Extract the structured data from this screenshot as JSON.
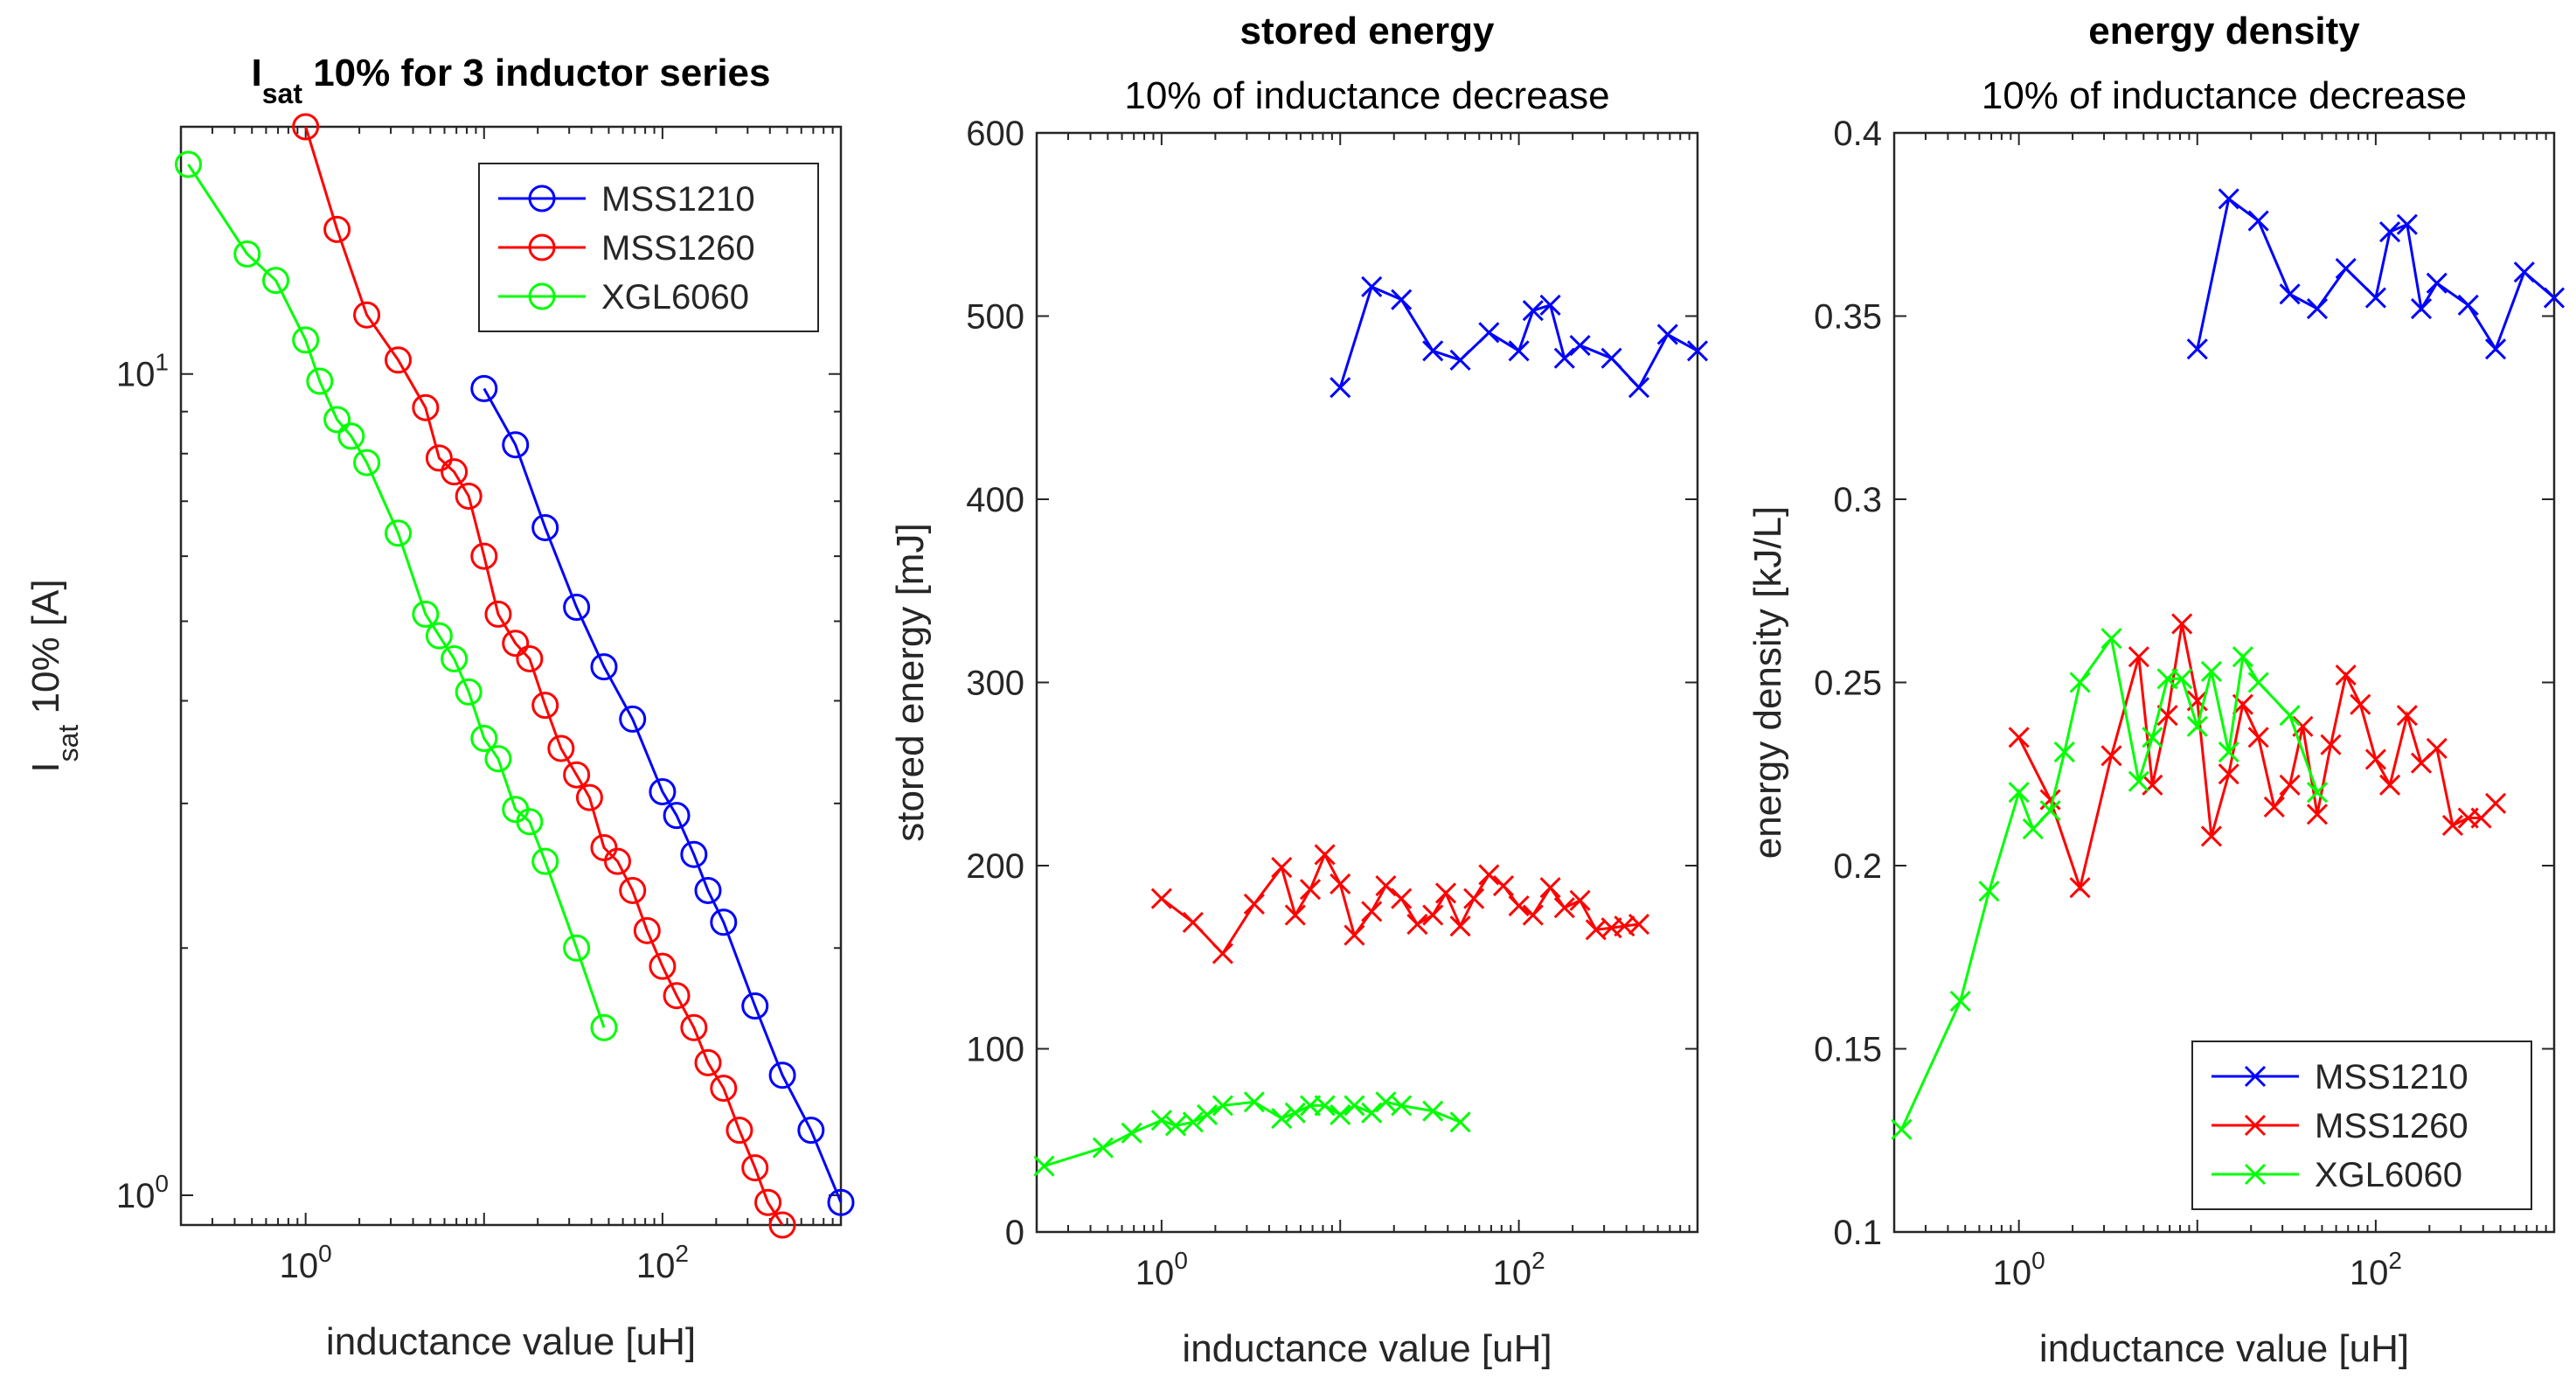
{
  "chart_data": [
    {
      "type": "line",
      "title_main": "I",
      "title_sub": "sat",
      "title_rest": " 10% for 3 inductor series",
      "xlabel": "inductance value [uH]",
      "ylabel_main": "I",
      "ylabel_sub": "sat",
      "ylabel_rest": " 10% [A]",
      "xscale": "log",
      "yscale": "log",
      "xlim": [
        0.2,
        1000
      ],
      "ylim": [
        0.92,
        20
      ],
      "xticks": [
        1,
        100
      ],
      "xtick_labels": [
        "10^0",
        "10^2"
      ],
      "yticks": [
        1,
        10
      ],
      "ytick_labels": [
        "10^0",
        "10^1"
      ],
      "marker": "circle",
      "legend_position": "top-right",
      "series": [
        {
          "name": "MSS1210",
          "color": "#0000ff",
          "x": [
            10,
            15,
            22,
            33,
            47,
            68,
            100,
            120,
            150,
            180,
            220,
            330,
            470,
            680,
            1000
          ],
          "y": [
            9.6,
            8.2,
            6.5,
            5.2,
            4.4,
            3.8,
            3.1,
            2.9,
            2.6,
            2.35,
            2.15,
            1.7,
            1.4,
            1.2,
            0.98
          ]
        },
        {
          "name": "MSS1260",
          "color": "#ff0000",
          "x": [
            1,
            1.5,
            2.2,
            3.3,
            4.7,
            5.6,
            6.8,
            8.2,
            10,
            12,
            15,
            18,
            22,
            27,
            33,
            39,
            47,
            56,
            68,
            82,
            100,
            120,
            150,
            180,
            220,
            270,
            330,
            390,
            470
          ],
          "y": [
            20,
            15,
            11.8,
            10.4,
            9.1,
            7.9,
            7.6,
            7.1,
            6.0,
            5.1,
            4.7,
            4.5,
            3.95,
            3.5,
            3.25,
            3.05,
            2.65,
            2.55,
            2.35,
            2.1,
            1.9,
            1.75,
            1.6,
            1.45,
            1.35,
            1.2,
            1.08,
            0.98,
            0.92
          ]
        },
        {
          "name": "XGL6060",
          "color": "#00ff00",
          "x": [
            0.22,
            0.47,
            0.68,
            1.0,
            1.2,
            1.5,
            1.8,
            2.2,
            3.3,
            4.7,
            5.6,
            6.8,
            8.2,
            10,
            12,
            15,
            18,
            22,
            33,
            47
          ],
          "y": [
            18,
            14,
            13,
            11,
            9.8,
            8.8,
            8.4,
            7.8,
            6.4,
            5.1,
            4.8,
            4.5,
            4.1,
            3.6,
            3.4,
            2.95,
            2.85,
            2.55,
            2.0,
            1.6
          ]
        }
      ]
    },
    {
      "type": "line",
      "title": "stored energy",
      "subtitle": "10% of inductance decrease",
      "xlabel": "inductance value [uH]",
      "ylabel": "stored energy [mJ]",
      "xscale": "log",
      "yscale": "linear",
      "xlim": [
        0.2,
        1000
      ],
      "ylim": [
        0,
        600
      ],
      "xticks": [
        1,
        100
      ],
      "xtick_labels": [
        "10^0",
        "10^2"
      ],
      "yticks": [
        0,
        100,
        200,
        300,
        400,
        500,
        600
      ],
      "ytick_labels": [
        "0",
        "100",
        "200",
        "300",
        "400",
        "500",
        "600"
      ],
      "marker": "x",
      "series": [
        {
          "color": "#0000ff",
          "x": [
            10,
            15,
            22,
            33,
            47,
            68,
            100,
            120,
            150,
            180,
            220,
            330,
            470,
            680,
            1000
          ],
          "y": [
            461,
            516,
            509,
            481,
            476,
            491,
            481,
            503,
            506,
            477,
            484,
            477,
            461,
            490,
            481
          ]
        },
        {
          "color": "#ff0000",
          "x": [
            1,
            1.5,
            2.2,
            3.3,
            4.7,
            5.6,
            6.8,
            8.2,
            10,
            12,
            15,
            18,
            22,
            27,
            33,
            39,
            47,
            56,
            68,
            82,
            100,
            120,
            150,
            180,
            220,
            270,
            330,
            390,
            470
          ],
          "y": [
            182,
            169,
            152,
            179,
            199,
            173,
            187,
            206,
            190,
            162,
            175,
            189,
            182,
            168,
            173,
            185,
            167,
            182,
            195,
            189,
            178,
            173,
            188,
            177,
            181,
            165,
            166,
            167,
            168
          ]
        },
        {
          "color": "#00ff00",
          "x": [
            0.22,
            0.47,
            0.68,
            1.0,
            1.2,
            1.5,
            1.8,
            2.2,
            3.3,
            4.7,
            5.6,
            6.8,
            8.2,
            10,
            12,
            15,
            18,
            22,
            33,
            47
          ],
          "y": [
            36,
            46,
            54,
            61,
            58,
            60,
            64,
            69,
            71,
            62,
            65,
            69,
            69,
            64,
            69,
            65,
            71,
            69,
            66,
            60
          ]
        }
      ]
    },
    {
      "type": "line",
      "title": "energy density",
      "subtitle": "10% of inductance decrease",
      "xlabel": "inductance value [uH]",
      "ylabel": "energy density [kJ/L]",
      "xscale": "log",
      "yscale": "linear",
      "xlim": [
        0.2,
        1000
      ],
      "ylim": [
        0.1,
        0.4
      ],
      "xticks": [
        1,
        100
      ],
      "xtick_labels": [
        "10^0",
        "10^2"
      ],
      "yticks": [
        0.1,
        0.15,
        0.2,
        0.25,
        0.3,
        0.35,
        0.4
      ],
      "ytick_labels": [
        "0.1",
        "0.15",
        "0.2",
        "0.25",
        "0.3",
        "0.35",
        "0.4"
      ],
      "marker": "x",
      "legend_position": "bottom-right",
      "series": [
        {
          "name": "MSS1210",
          "color": "#0000ff",
          "x": [
            10,
            15,
            22,
            33,
            47,
            68,
            100,
            120,
            150,
            180,
            220,
            330,
            470,
            680,
            1000
          ],
          "y": [
            0.341,
            0.382,
            0.376,
            0.356,
            0.352,
            0.363,
            0.355,
            0.373,
            0.375,
            0.352,
            0.359,
            0.353,
            0.341,
            0.362,
            0.355
          ]
        },
        {
          "name": "MSS1260",
          "color": "#ff0000",
          "x": [
            1,
            1.5,
            2.2,
            3.3,
            4.7,
            5.6,
            6.8,
            8.2,
            10,
            12,
            15,
            18,
            22,
            27,
            33,
            39,
            47,
            56,
            68,
            82,
            100,
            120,
            150,
            180,
            220,
            270,
            330,
            390,
            470
          ],
          "y": [
            0.235,
            0.218,
            0.194,
            0.23,
            0.257,
            0.222,
            0.241,
            0.266,
            0.245,
            0.208,
            0.225,
            0.244,
            0.235,
            0.216,
            0.222,
            0.238,
            0.214,
            0.233,
            0.252,
            0.244,
            0.229,
            0.222,
            0.241,
            0.228,
            0.232,
            0.211,
            0.213,
            0.213,
            0.217
          ]
        },
        {
          "name": "XGL6060",
          "color": "#00ff00",
          "x": [
            0.22,
            0.47,
            0.68,
            1.0,
            1.2,
            1.5,
            1.8,
            2.2,
            3.3,
            4.7,
            5.6,
            6.8,
            8.2,
            10,
            12,
            15,
            18,
            22,
            33,
            47
          ],
          "y": [
            0.128,
            0.163,
            0.193,
            0.22,
            0.21,
            0.215,
            0.231,
            0.25,
            0.262,
            0.223,
            0.235,
            0.251,
            0.251,
            0.238,
            0.253,
            0.231,
            0.257,
            0.25,
            0.241,
            0.22
          ]
        }
      ]
    }
  ]
}
